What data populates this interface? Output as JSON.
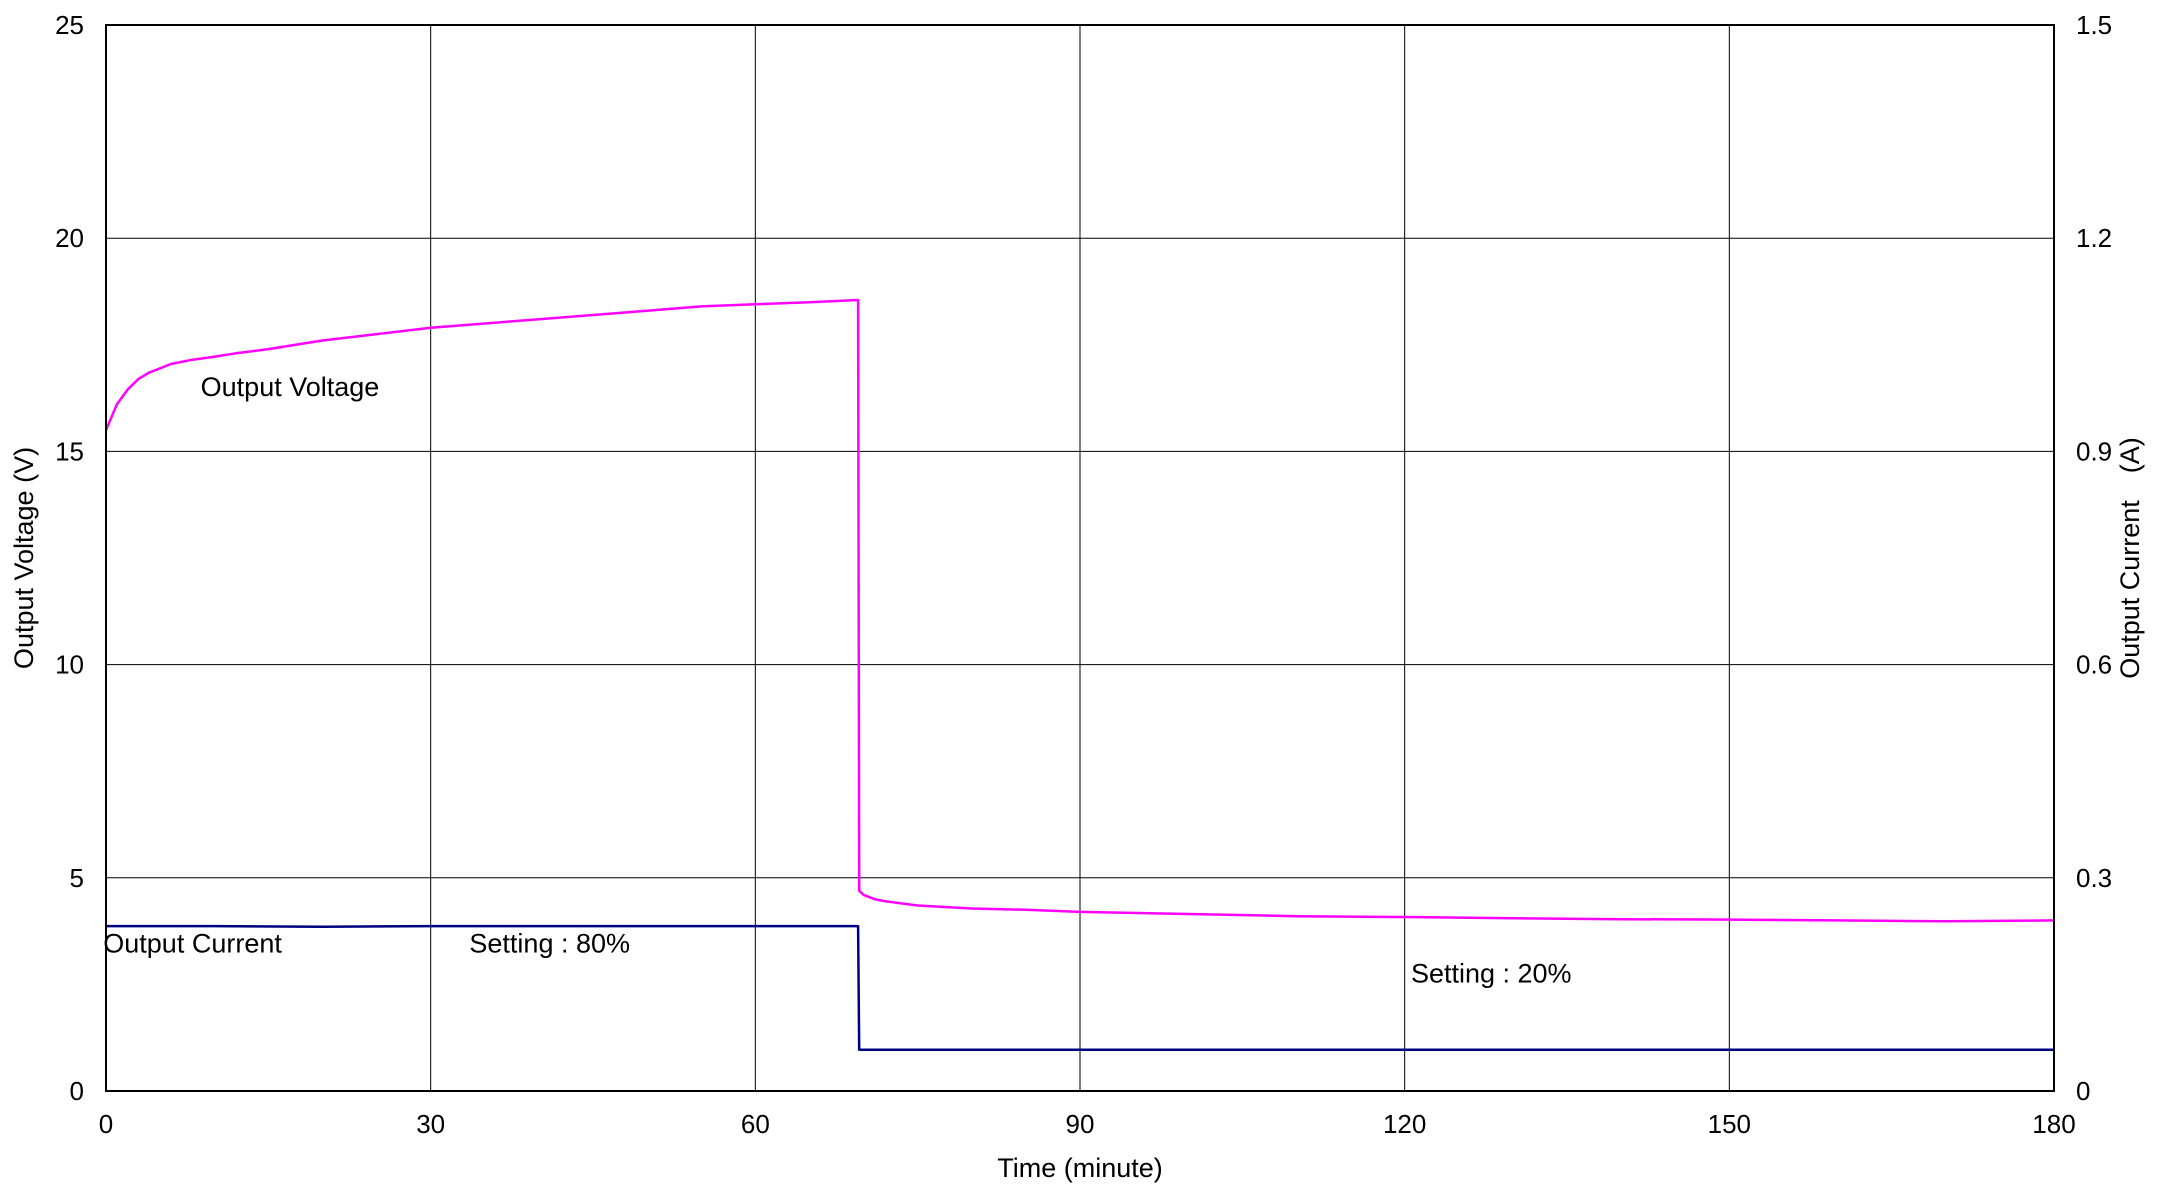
{
  "chart_data": {
    "type": "line",
    "xlabel": "Time (minute)",
    "ylabel": "Output Voltage (V)",
    "y2label": "Output Current　(A)",
    "xlim": [
      0,
      180
    ],
    "ylim": [
      0,
      25
    ],
    "y2lim": [
      0,
      1.5
    ],
    "xticks": [
      "0",
      "30",
      "60",
      "90",
      "120",
      "150",
      "180"
    ],
    "yticks": [
      "0",
      "5",
      "10",
      "15",
      "20",
      "25"
    ],
    "y2ticks": [
      "0",
      "0.3",
      "0.6",
      "0.9",
      "1.2",
      "1.5"
    ],
    "grid": true,
    "colors": {
      "voltage": "#ff00ff",
      "current": "#000080",
      "grid": "#000000"
    },
    "series": [
      {
        "key": "voltage",
        "axis": "left",
        "x": [
          0,
          0.5,
          1,
          2,
          3,
          4,
          5,
          6,
          8,
          10,
          12,
          15,
          20,
          25,
          30,
          35,
          40,
          45,
          50,
          55,
          60,
          65,
          69.5,
          69.6,
          70,
          71,
          72,
          75,
          80,
          85,
          90,
          100,
          110,
          120,
          130,
          140,
          150,
          160,
          170,
          180
        ],
        "y": [
          15.5,
          15.8,
          16.1,
          16.45,
          16.7,
          16.85,
          16.95,
          17.05,
          17.15,
          17.22,
          17.3,
          17.4,
          17.6,
          17.75,
          17.9,
          18.0,
          18.1,
          18.2,
          18.3,
          18.4,
          18.45,
          18.5,
          18.55,
          4.7,
          4.6,
          4.5,
          4.45,
          4.35,
          4.28,
          4.25,
          4.2,
          4.15,
          4.1,
          4.08,
          4.05,
          4.03,
          4.02,
          4.0,
          3.98,
          4.0
        ]
      },
      {
        "key": "current",
        "axis": "right",
        "x": [
          0,
          10,
          20,
          30,
          40,
          50,
          60,
          65,
          69.5,
          69.6,
          70,
          80,
          90,
          100,
          110,
          120,
          130,
          140,
          150,
          160,
          170,
          180
        ],
        "y": [
          0.232,
          0.232,
          0.231,
          0.232,
          0.232,
          0.232,
          0.232,
          0.232,
          0.232,
          0.058,
          0.058,
          0.058,
          0.058,
          0.058,
          0.058,
          0.058,
          0.058,
          0.058,
          0.058,
          0.058,
          0.058,
          0.058
        ]
      }
    ],
    "annotations": [
      {
        "text": "Output Voltage",
        "x": 17,
        "y": 16.3
      },
      {
        "text": "Output Current",
        "x": 8,
        "y": 3.25
      },
      {
        "text": "Setting : 80%",
        "x": 41,
        "y": 3.25
      },
      {
        "text": "Setting : 20%",
        "x": 128,
        "y": 2.55
      }
    ]
  }
}
